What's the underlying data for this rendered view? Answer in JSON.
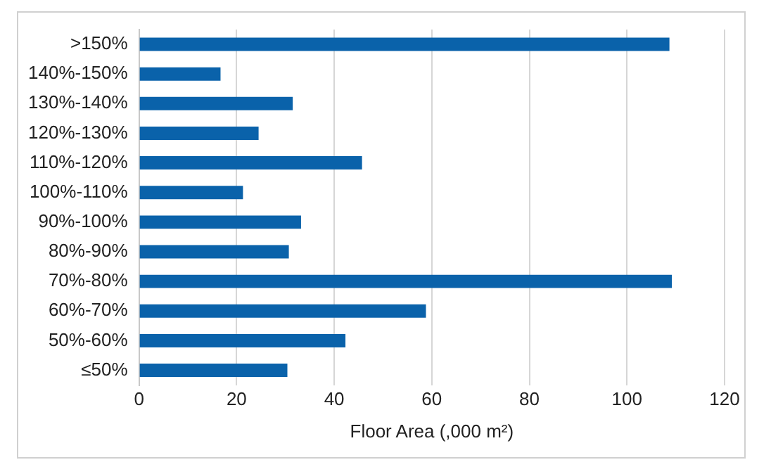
{
  "chart_data": {
    "type": "bar",
    "orientation": "horizontal",
    "xlabel": "Floor Area (,000 m²)",
    "categories": [
      ">150%",
      "140%-150%",
      "130%-140%",
      "120%-130%",
      "110%-120%",
      "100%-110%",
      "90%-100%",
      "80%-90%",
      "70%-80%",
      "60%-70%",
      "50%-60%",
      "≤50%"
    ],
    "values": [
      108.7,
      16.7,
      31.5,
      24.5,
      45.7,
      21.3,
      33.2,
      30.7,
      109.2,
      58.8,
      42.3,
      30.4
    ],
    "color": "#0a62aa",
    "xlim": [
      0,
      120
    ],
    "xticks": [
      0,
      20,
      40,
      60,
      80,
      100,
      120
    ],
    "grid": "x",
    "legend": false
  }
}
